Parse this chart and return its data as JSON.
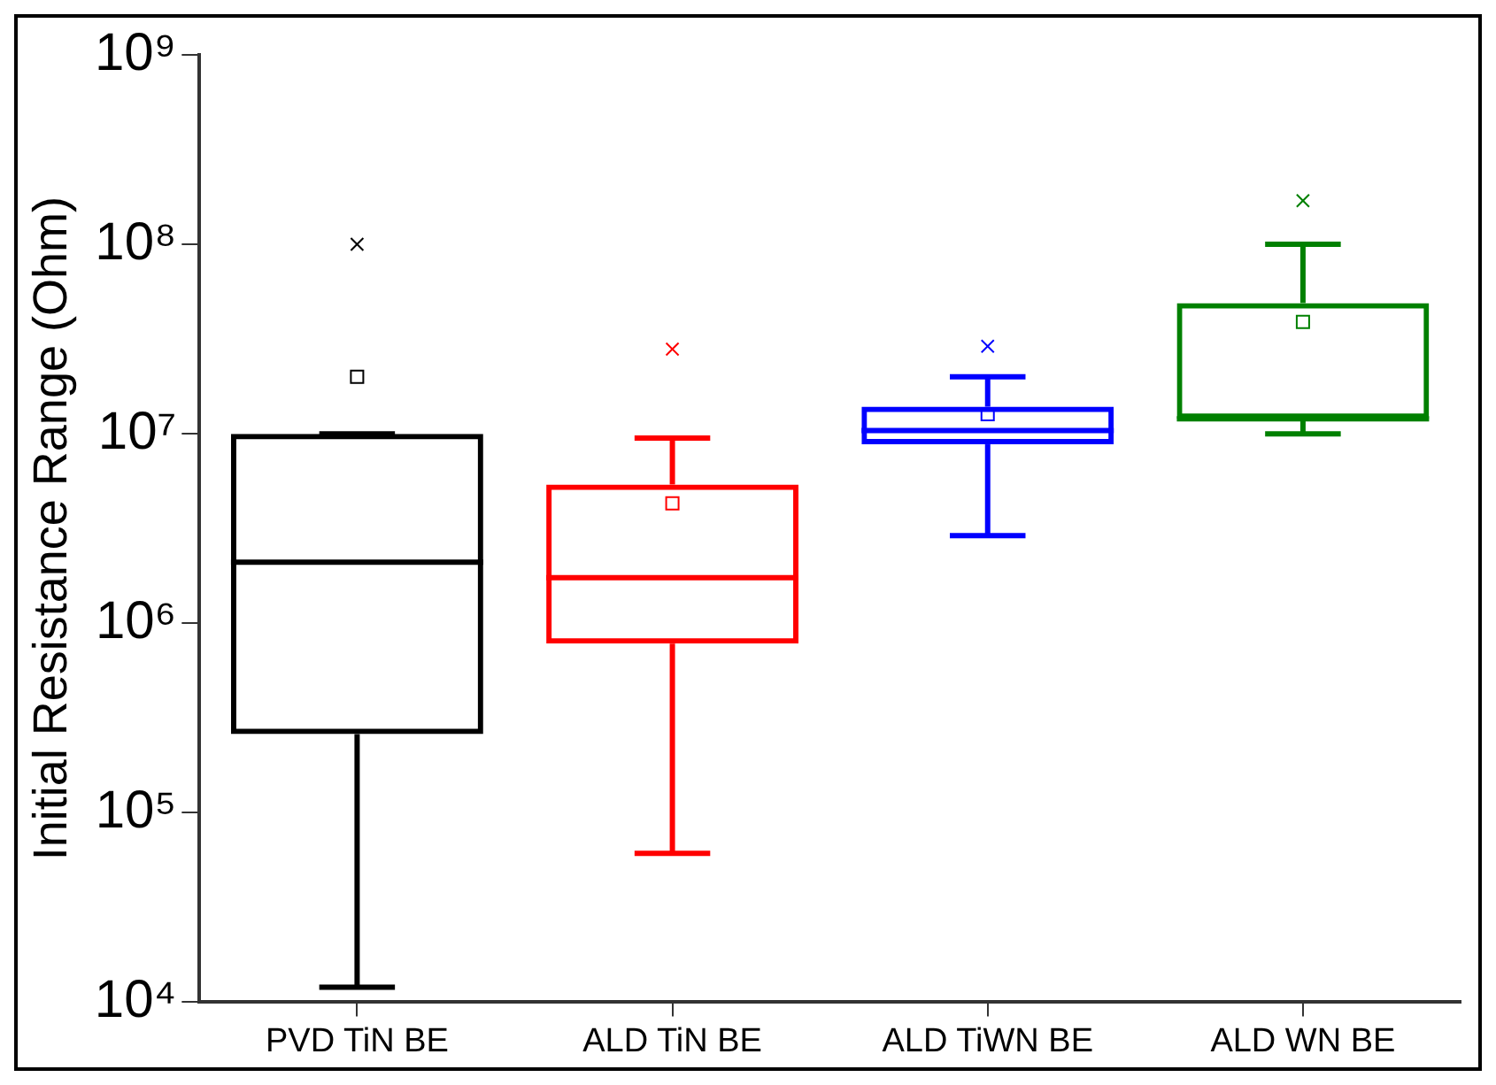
{
  "chart_data": {
    "type": "box",
    "ylabel": "Initial Resistance Range (Ohm)",
    "categories": [
      "PVD TiN BE",
      "ALD TiN BE",
      "ALD TiWN BE",
      "ALD WN BE"
    ],
    "colors": [
      "#000000",
      "#ff0000",
      "#0000ff",
      "#008000"
    ],
    "boxes": [
      {
        "low": 12000,
        "q1": 260000,
        "median": 2100000,
        "q3": 10000000,
        "high": 10000000,
        "mean": 20000000,
        "outliers": [
          100000000
        ]
      },
      {
        "low": 61000,
        "q1": 780000,
        "median": 1740000,
        "q3": 5400000,
        "high": 9500000,
        "mean": 4300000,
        "outliers": [
          28000000
        ]
      },
      {
        "low": 2900000,
        "q1": 8800000,
        "median": 10400000,
        "q3": 13900000,
        "high": 20000000,
        "mean": 12700000,
        "outliers": [
          29000000
        ]
      },
      {
        "low": 10000000,
        "q1": 12000000,
        "median": 12000000,
        "q3": 49000000,
        "high": 100000000,
        "mean": 39000000,
        "outliers": [
          170000000
        ]
      }
    ],
    "log": true,
    "ylim": [
      10000,
      1000000000
    ],
    "yticks": [
      {
        "value": 10000,
        "label": "10⁴"
      },
      {
        "value": 100000,
        "label": "10⁵"
      },
      {
        "value": 1000000,
        "label": "10⁶"
      },
      {
        "value": 10000000,
        "label": "10⁷"
      },
      {
        "value": 100000000,
        "label": "10⁸"
      },
      {
        "value": 1000000000,
        "label": "10⁹"
      }
    ],
    "grid": false,
    "legend": false
  }
}
